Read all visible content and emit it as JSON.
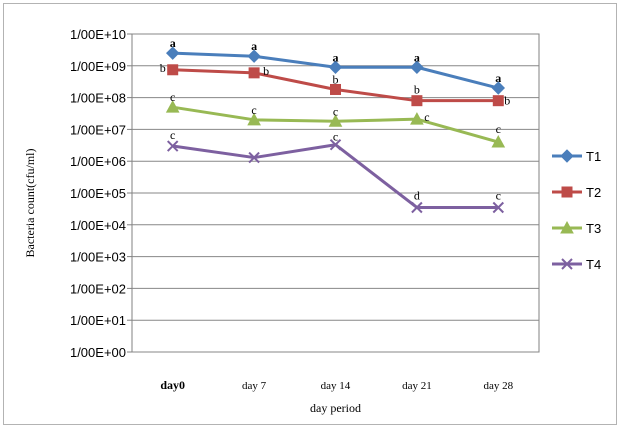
{
  "chart_data": {
    "type": "line",
    "title": "",
    "xlabel": "day period",
    "ylabel": "Bacteria count(cfu/ml)",
    "y_scale": "log",
    "ylim": [
      1,
      10000000000
    ],
    "y_tick_labels": [
      "1/00E+10",
      "1/00E+09",
      "1/00E+08",
      "1/00E+07",
      "1/00E+06",
      "1/00E+05",
      "1/00E+04",
      "1/00E+03",
      "1/00E+02",
      "1/00E+01",
      "1/00E+00"
    ],
    "categories": [
      "day0",
      "day 7",
      "day 14",
      "day 21",
      "day 28"
    ],
    "grid": true,
    "legend_position": "right",
    "series": [
      {
        "name": "T1",
        "color": "#4a7ebb",
        "marker": "diamond",
        "values": [
          2500000000,
          2000000000,
          900000000,
          900000000,
          200000000
        ],
        "letters": [
          "a",
          "a",
          "a",
          "a",
          "a"
        ]
      },
      {
        "name": "T2",
        "color": "#be4b48",
        "marker": "square",
        "values": [
          750000000,
          600000000,
          180000000,
          80000000,
          80000000
        ],
        "letters": [
          "b",
          "b",
          "b",
          "b",
          "b"
        ]
      },
      {
        "name": "T3",
        "color": "#98b954",
        "marker": "triangle",
        "values": [
          50000000,
          20000000,
          18000000,
          21000000,
          4000000
        ],
        "letters": [
          "c",
          "c",
          "c",
          "c",
          "c"
        ]
      },
      {
        "name": "T4",
        "color": "#7d60a0",
        "marker": "x",
        "values": [
          3000000,
          1300000,
          3300000,
          35000,
          35000
        ],
        "letters": [
          "c",
          "",
          "c",
          "d",
          "c"
        ]
      }
    ]
  }
}
